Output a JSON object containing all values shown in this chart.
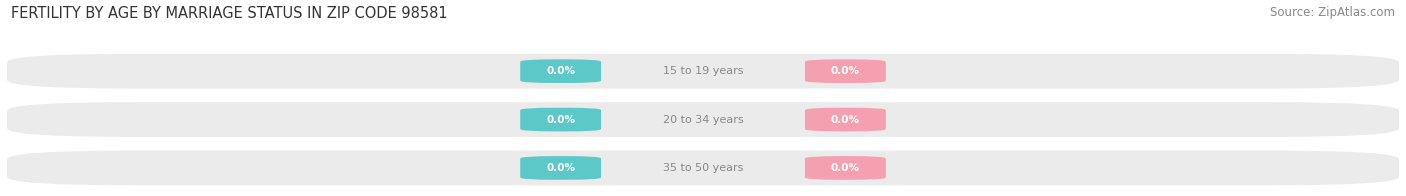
{
  "title": "FERTILITY BY AGE BY MARRIAGE STATUS IN ZIP CODE 98581",
  "source": "Source: ZipAtlas.com",
  "categories": [
    "15 to 19 years",
    "20 to 34 years",
    "35 to 50 years"
  ],
  "married_values": [
    0.0,
    0.0,
    0.0
  ],
  "unmarried_values": [
    0.0,
    0.0,
    0.0
  ],
  "married_color": "#5CC8C8",
  "unmarried_color": "#F4A0B0",
  "bar_bg_color": "#EBEBEB",
  "label_text_color": "#FFFFFF",
  "center_label_color": "#888888",
  "axis_label": "0.0%",
  "title_fontsize": 10.5,
  "source_fontsize": 8.5,
  "tick_fontsize": 8.5,
  "legend_fontsize": 8.5,
  "bar_height": 0.72,
  "background_color": "#FFFFFF",
  "fig_width": 14.06,
  "fig_height": 1.96
}
